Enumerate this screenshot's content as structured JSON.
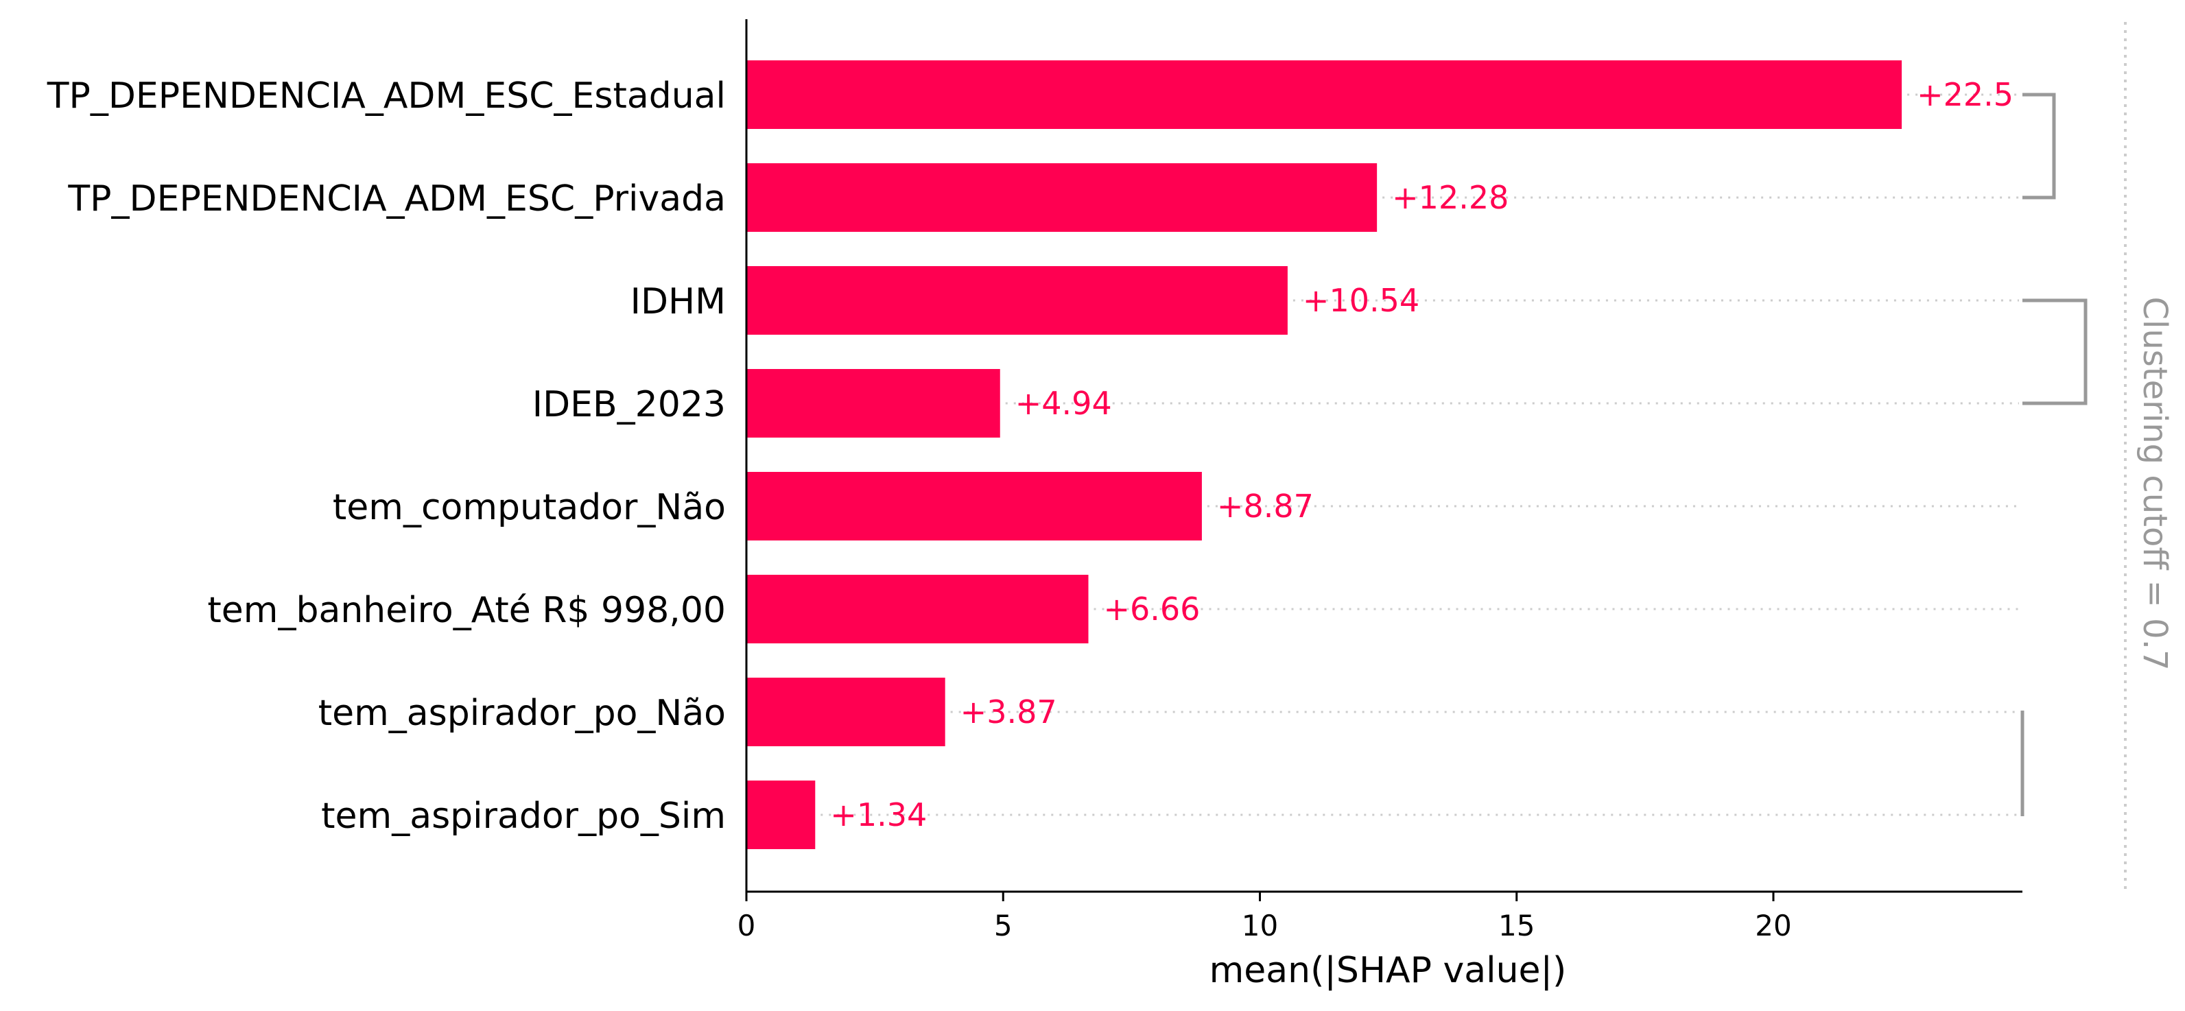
{
  "chart_data": {
    "type": "bar",
    "orientation": "horizontal",
    "categories": [
      "TP_DEPENDENCIA_ADM_ESC_Estadual",
      "TP_DEPENDENCIA_ADM_ESC_Privada",
      "IDHM",
      "IDEB_2023",
      "tem_computador_Não",
      "tem_banheiro_Até R$ 998,00",
      "tem_aspirador_po_Não",
      "tem_aspirador_po_Sim"
    ],
    "values": [
      22.5,
      12.28,
      10.54,
      4.94,
      8.87,
      6.66,
      3.87,
      1.34
    ],
    "value_labels": [
      "+22.5",
      "+12.28",
      "+10.54",
      "+4.94",
      "+8.87",
      "+6.66",
      "+3.87",
      "+1.34"
    ],
    "xlabel": "mean(|SHAP value|)",
    "xlim": [
      0,
      24.85
    ],
    "xticks": [
      0,
      5,
      10,
      15,
      20
    ],
    "xtick_labels": [
      "0",
      "5",
      "10",
      "15",
      "20"
    ],
    "clustering": {
      "label": "Clustering cutoff = 0.7",
      "groups": [
        {
          "rows": [
            0,
            1
          ],
          "depth": 1
        },
        {
          "rows": [
            2,
            3
          ],
          "depth": 2
        },
        {
          "rows": [
            6,
            7
          ],
          "depth": 0
        }
      ]
    },
    "colors": {
      "bar": "#ff0051",
      "value_text": "#ff0051",
      "axis": "#000000",
      "dendrogram": "#999999",
      "guide_line": "#cccccc",
      "cutoff_text": "#999999"
    }
  }
}
